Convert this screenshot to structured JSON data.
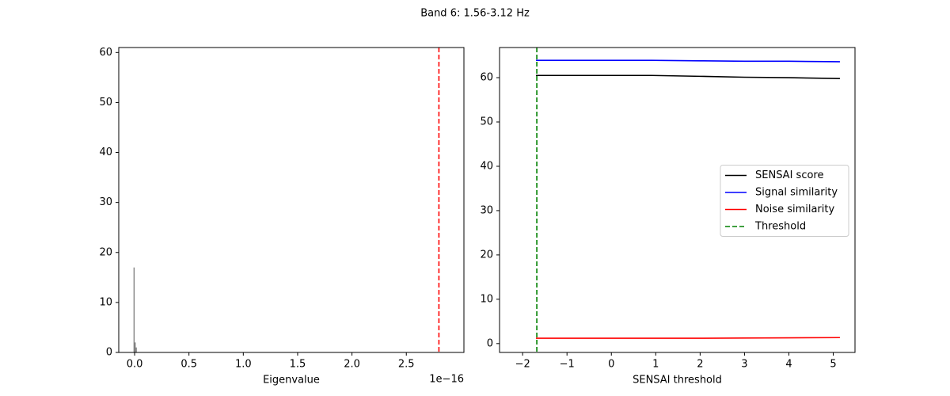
{
  "title": "Band 6: 1.56-3.12 Hz",
  "chart_data": [
    {
      "type": "histogram",
      "xlabel": "Eigenvalue",
      "x_offset_label": "1e−16",
      "bins": [
        -0.01,
        0.0,
        0.01,
        0.02
      ],
      "values": [
        17,
        2,
        1
      ],
      "color": "#808080",
      "threshold": {
        "value": 2.8,
        "color": "#ff0000",
        "style": "dashed"
      },
      "xlim": [
        -0.146,
        3.03
      ],
      "ylim": [
        0,
        61
      ],
      "xticks": [
        {
          "value": 0,
          "label": "0.0"
        },
        0.5,
        {
          "value": 1,
          "label": "1.0"
        },
        1.5,
        {
          "value": 2,
          "label": "2.0"
        },
        2.5
      ],
      "yticks": [
        0,
        10,
        20,
        30,
        40,
        50,
        60
      ]
    },
    {
      "type": "line",
      "xlabel": "SENSAI threshold",
      "x": [
        -1.7,
        -1,
        0,
        0.9,
        2,
        3,
        4,
        5.15
      ],
      "series": [
        {
          "name": "SENSAI score",
          "color": "#000000",
          "values": [
            60.5,
            60.5,
            60.5,
            60.5,
            60.3,
            60.1,
            60.0,
            59.8
          ]
        },
        {
          "name": "Signal similarity",
          "color": "#0000ff",
          "values": [
            63.9,
            63.9,
            63.9,
            63.9,
            63.8,
            63.7,
            63.7,
            63.6
          ]
        },
        {
          "name": "Noise similarity",
          "color": "#ff0000",
          "values": [
            1.2,
            1.2,
            1.2,
            1.2,
            1.2,
            1.25,
            1.3,
            1.35
          ]
        }
      ],
      "threshold": {
        "name": "Threshold",
        "value": -1.68,
        "color": "#008000",
        "style": "dashed"
      },
      "legend": "center right",
      "xlim": [
        -2.52,
        5.49
      ],
      "ylim": [
        -2,
        66.8
      ],
      "xticks": [
        {
          "value": -2,
          "label": "−2"
        },
        {
          "value": -1,
          "label": "−1"
        },
        0,
        1,
        2,
        3,
        4,
        5
      ],
      "yticks": [
        0,
        10,
        20,
        30,
        40,
        50,
        60
      ]
    }
  ]
}
